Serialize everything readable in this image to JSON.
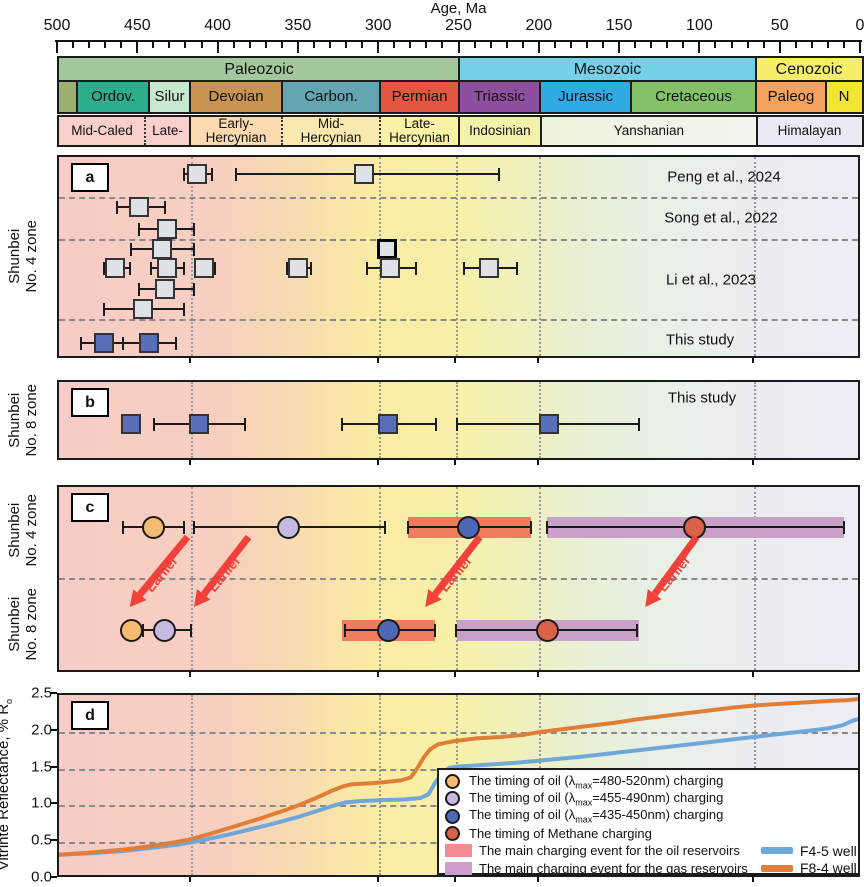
{
  "figure": {
    "axis": {
      "title": "Age, Ma",
      "min": 0,
      "max": 500,
      "major_step": 50,
      "minor_step": 10
    },
    "timescale": {
      "eras": [
        {
          "label": "Paleozoic",
          "from": 500,
          "to": 250.9,
          "color": "#A4C79D"
        },
        {
          "label": "Mesozoic",
          "from": 250.9,
          "to": 66,
          "color": "#76D1E8"
        },
        {
          "label": "Cenozoic",
          "from": 66,
          "to": 0,
          "color": "#F6EE6B"
        }
      ],
      "periods": [
        {
          "label": "",
          "from": 500,
          "to": 488.8,
          "color": "#9CB171"
        },
        {
          "label": "Ordov.",
          "from": 488.8,
          "to": 443.9,
          "color": "#2CAE8D"
        },
        {
          "label": "Silur",
          "from": 443.9,
          "to": 418.4,
          "color": "#C8E7CF"
        },
        {
          "label": "Devoian",
          "from": 418.4,
          "to": 361.1,
          "color": "#C99450"
        },
        {
          "label": "Carbon.",
          "from": 361.1,
          "to": 300.1,
          "color": "#63A6B1"
        },
        {
          "label": "Permian",
          "from": 300.1,
          "to": 250.9,
          "color": "#E1573F"
        },
        {
          "label": "Triassic",
          "from": 250.9,
          "to": 200.5,
          "color": "#8F4FA1"
        },
        {
          "label": "Jurassic",
          "from": 200.5,
          "to": 143.8,
          "color": "#2FAAE2"
        },
        {
          "label": "Cretaceous",
          "from": 143.8,
          "to": 66,
          "color": "#83C267"
        },
        {
          "label": "Paleog",
          "from": 66,
          "to": 22.4,
          "color": "#F5A25D"
        },
        {
          "label": "N",
          "from": 22.4,
          "to": 0,
          "color": "#F3E632"
        }
      ],
      "tectonic": [
        {
          "label": "Mid-Caled",
          "from": 500,
          "to": 446.4,
          "color": "#F8CFCA",
          "sep": "none"
        },
        {
          "label": "Late-",
          "from": 446.4,
          "to": 418.4,
          "color": "#F8CFCA",
          "sep": "dot"
        },
        {
          "label": "Early-\nHercynian",
          "from": 418.4,
          "to": 361.1,
          "color": "#FBDAAF",
          "sep": "solid"
        },
        {
          "label": "Mid-\nHercynian",
          "from": 361.1,
          "to": 300.1,
          "color": "#F9E9AE",
          "sep": "dot"
        },
        {
          "label": "Late-\nHercynian",
          "from": 300.1,
          "to": 250.9,
          "color": "#F8F1A6",
          "sep": "dot"
        },
        {
          "label": "Indosinian",
          "from": 250.9,
          "to": 200,
          "color": "#F4F1AA",
          "sep": "solid"
        },
        {
          "label": "Yanshanian",
          "from": 200,
          "to": 65.4,
          "color": "#ECF3DC",
          "color2": "#F3F5EF",
          "sep": "solid"
        },
        {
          "label": "Himalayan",
          "from": 65.4,
          "to": 0,
          "color": "#EAEAF5",
          "sep": "solid"
        }
      ]
    },
    "gridline_ages": [
      417,
      300,
      252,
      200.5,
      66.5
    ]
  },
  "chart_data": {
    "type": "mixed (scatter with error bars, event timeline, line)",
    "x_axis": {
      "label": "Age, Ma",
      "range": [
        500,
        0
      ]
    },
    "panel_a": {
      "letter": "a",
      "side_label": [
        "Shunbei",
        "No. 4 zone"
      ],
      "marker_color_default": "#DEE1E6",
      "marker_color_study": "#5A6FBA",
      "groups": [
        {
          "label": "Peng et al., 2024",
          "study": false,
          "rows": [
            [
              {
                "age": 414,
                "from": 422,
                "to": 405
              },
              {
                "age": 310,
                "from": 390,
                "to": 226
              }
            ]
          ]
        },
        {
          "label": "Song et al., 2022",
          "study": false,
          "rows": [
            [
              {
                "age": 450,
                "from": 464,
                "to": 434
              }
            ],
            [
              {
                "age": 433,
                "from": 450,
                "to": 416
              }
            ]
          ]
        },
        {
          "label": "Li et al., 2023",
          "study": false,
          "rows": [
            [
              {
                "age": 436,
                "from": 455,
                "to": 416
              },
              {
                "age": 296,
                "bold": true
              }
            ],
            [
              {
                "age": 465,
                "from": 472,
                "to": 456
              },
              {
                "age": 433,
                "from": 443,
                "to": 422
              },
              {
                "age": 410,
                "from": 415,
                "to": 403
              },
              {
                "age": 351,
                "from": 358,
                "to": 343
              },
              {
                "age": 294,
                "from": 308,
                "to": 278
              },
              {
                "age": 232,
                "from": 248,
                "to": 215
              }
            ],
            [
              {
                "age": 434,
                "from": 450,
                "to": 416
              }
            ],
            [
              {
                "age": 448,
                "from": 472,
                "to": 422
              }
            ]
          ]
        },
        {
          "label": "This study",
          "study": true,
          "rows": [
            [
              {
                "age": 472,
                "from": 486,
                "to": 460
              },
              {
                "age": 444,
                "from": 460,
                "to": 427
              }
            ]
          ]
        }
      ]
    },
    "panel_b": {
      "letter": "b",
      "side_label": [
        "Shunbei",
        "No. 8 zone"
      ],
      "label": "This study",
      "marker_color": "#5A6FBA",
      "points": [
        {
          "age": 455
        },
        {
          "age": 413,
          "from": 441,
          "to": 384
        },
        {
          "age": 295,
          "from": 324,
          "to": 265
        },
        {
          "age": 195,
          "from": 252,
          "to": 139
        }
      ]
    },
    "panel_c": {
      "letter": "c",
      "arrow_color": "#F2413A",
      "rows": [
        {
          "side_label": [
            "Shunbei",
            "No. 4 zone"
          ],
          "points": [
            {
              "color": "#F6BA72",
              "age": 441,
              "from": 460,
              "to": 422
            },
            {
              "color": "#C8B9E2",
              "age": 357,
              "from": 416,
              "to": 297
            },
            {
              "color": "#4F68B5",
              "age": 245,
              "from": 283,
              "to": 206,
              "band": [
                283,
                206
              ],
              "band_color": "#EE7D5E"
            },
            {
              "color": "#D96248",
              "age": 104,
              "from": 196,
              "to": 11,
              "band": [
                196,
                11
              ],
              "band_color": "#C9A0C7"
            }
          ]
        },
        {
          "side_label": [
            "Shunbei",
            "No. 8 zone"
          ],
          "points": [
            {
              "color": "#F6BA72",
              "age": 455
            },
            {
              "color": "#C8B9E2",
              "age": 434,
              "from": 448,
              "to": 418
            },
            {
              "color": "#4F68B5",
              "age": 295,
              "from": 322,
              "to": 266,
              "band": [
                324,
                266
              ],
              "band_color": "#EE7D5E"
            },
            {
              "color": "#D96248",
              "age": 196,
              "from": 253,
              "to": 140,
              "band": [
                252,
                139
              ],
              "band_color": "#C9A0C7"
            }
          ]
        }
      ],
      "annotations": [
        {
          "label": "Earlier",
          "tail_age": 420,
          "head_age": 456
        },
        {
          "label": "Earlier",
          "tail_age": 382,
          "head_age": 416
        },
        {
          "label": "Earlier",
          "tail_age": 238,
          "head_age": 272
        },
        {
          "label": "Earlier",
          "tail_age": 103,
          "head_age": 135
        }
      ]
    },
    "panel_d": {
      "letter": "d",
      "ylabel": "Vitrinte Reflectance, % R",
      "ylabel_sub": "o",
      "ylim": [
        0,
        2.5
      ],
      "yticks": [
        0,
        0.5,
        1,
        1.5,
        2,
        2.5
      ],
      "series": [
        {
          "name": "F4-5 well",
          "color": "#6EA7D9",
          "points": [
            [
              500,
              0.33
            ],
            [
              480,
              0.35
            ],
            [
              460,
              0.38
            ],
            [
              440,
              0.43
            ],
            [
              425,
              0.47
            ],
            [
              410,
              0.53
            ],
            [
              395,
              0.6
            ],
            [
              380,
              0.68
            ],
            [
              365,
              0.76
            ],
            [
              350,
              0.85
            ],
            [
              340,
              0.92
            ],
            [
              330,
              0.99
            ],
            [
              322,
              1.04
            ],
            [
              312,
              1.06
            ],
            [
              300,
              1.07
            ],
            [
              285,
              1.08
            ],
            [
              275,
              1.1
            ],
            [
              270,
              1.15
            ],
            [
              266,
              1.3
            ],
            [
              261,
              1.45
            ],
            [
              257,
              1.51
            ],
            [
              250,
              1.53
            ],
            [
              235,
              1.55
            ],
            [
              215,
              1.58
            ],
            [
              195,
              1.62
            ],
            [
              175,
              1.66
            ],
            [
              155,
              1.71
            ],
            [
              135,
              1.76
            ],
            [
              115,
              1.81
            ],
            [
              95,
              1.86
            ],
            [
              75,
              1.91
            ],
            [
              55,
              1.96
            ],
            [
              35,
              2.01
            ],
            [
              20,
              2.05
            ],
            [
              12,
              2.09
            ],
            [
              6,
              2.15
            ],
            [
              0,
              2.19
            ]
          ]
        },
        {
          "name": "F8-4 well",
          "color": "#E07E38",
          "points": [
            [
              500,
              0.33
            ],
            [
              480,
              0.36
            ],
            [
              460,
              0.4
            ],
            [
              445,
              0.44
            ],
            [
              430,
              0.49
            ],
            [
              420,
              0.53
            ],
            [
              405,
              0.62
            ],
            [
              390,
              0.72
            ],
            [
              375,
              0.82
            ],
            [
              360,
              0.93
            ],
            [
              350,
              1.01
            ],
            [
              340,
              1.1
            ],
            [
              330,
              1.2
            ],
            [
              323,
              1.26
            ],
            [
              317,
              1.29
            ],
            [
              305,
              1.3
            ],
            [
              295,
              1.32
            ],
            [
              287,
              1.34
            ],
            [
              281,
              1.38
            ],
            [
              277,
              1.5
            ],
            [
              273,
              1.65
            ],
            [
              269,
              1.76
            ],
            [
              264,
              1.83
            ],
            [
              255,
              1.87
            ],
            [
              240,
              1.91
            ],
            [
              225,
              1.93
            ],
            [
              210,
              1.96
            ],
            [
              200,
              2
            ],
            [
              185,
              2.04
            ],
            [
              170,
              2.08
            ],
            [
              155,
              2.12
            ],
            [
              140,
              2.17
            ],
            [
              125,
              2.21
            ],
            [
              110,
              2.25
            ],
            [
              95,
              2.29
            ],
            [
              80,
              2.33
            ],
            [
              65,
              2.36
            ],
            [
              50,
              2.38
            ],
            [
              35,
              2.4
            ],
            [
              20,
              2.42
            ],
            [
              10,
              2.43
            ],
            [
              0,
              2.45
            ]
          ]
        }
      ],
      "legend": {
        "items": [
          {
            "type": "circle",
            "color": "#F6BA72",
            "text": "The timing of oil (λmax=480-520nm) charging"
          },
          {
            "type": "circle",
            "color": "#C8B9E2",
            "text": "The timing of oil (λmax=455-490nm) charging"
          },
          {
            "type": "circle",
            "color": "#4F68B5",
            "text": "The timing of oil (λmax=435-450nm) charging"
          },
          {
            "type": "circle",
            "color": "#D96248",
            "text": "The timing of Methane charging"
          },
          {
            "type": "swatch",
            "color": "#F28B94",
            "text": "The main charging event for the oil reservoirs"
          },
          {
            "type": "swatch",
            "color": "#CD9EC9",
            "text": "The main charging event for the gas reservoirs"
          }
        ],
        "wells": [
          {
            "label": "F4-5 well",
            "color": "#6EA7D9"
          },
          {
            "label": "F8-4 well",
            "color": "#E07E38"
          }
        ]
      }
    }
  }
}
